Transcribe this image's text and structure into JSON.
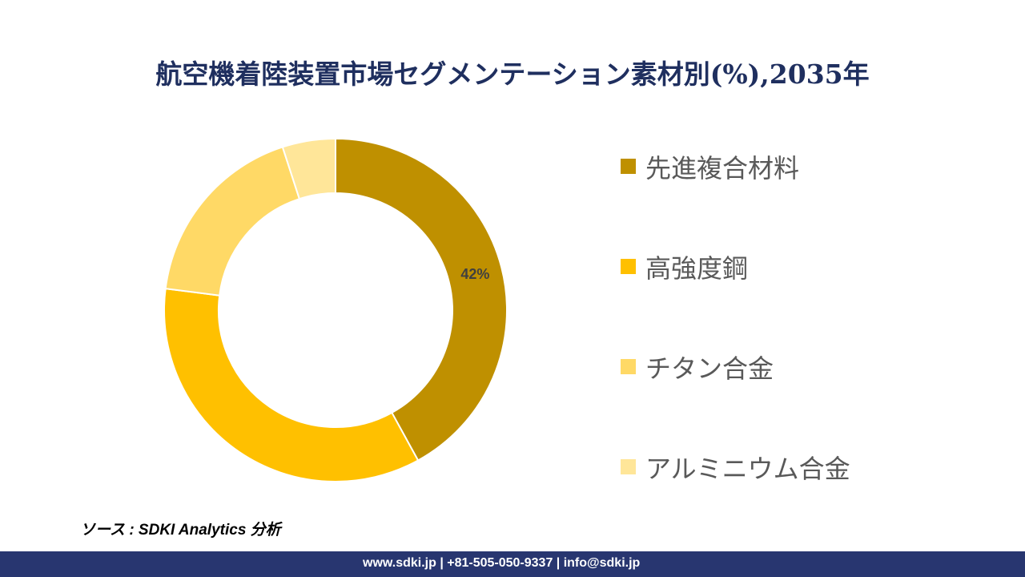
{
  "chart_data": {
    "type": "pie",
    "donut": true,
    "title": "航空機着陸装置市場セグメンテーション素材別(%),2035年",
    "categories": [
      "先進複合材料",
      "高強度鋼",
      "チタン合金",
      "アルミニウム合金"
    ],
    "values": [
      42,
      35,
      18,
      5
    ],
    "data_labels": [
      "42%",
      "",
      "",
      ""
    ],
    "colors": [
      "#BF9000",
      "#FFC000",
      "#FFD966",
      "#FFE699"
    ],
    "legend_position": "right"
  },
  "source": "ソース : SDKI Analytics 分析",
  "footer": "www.sdki.jp | +81-505-050-9337 | info@sdki.jp"
}
